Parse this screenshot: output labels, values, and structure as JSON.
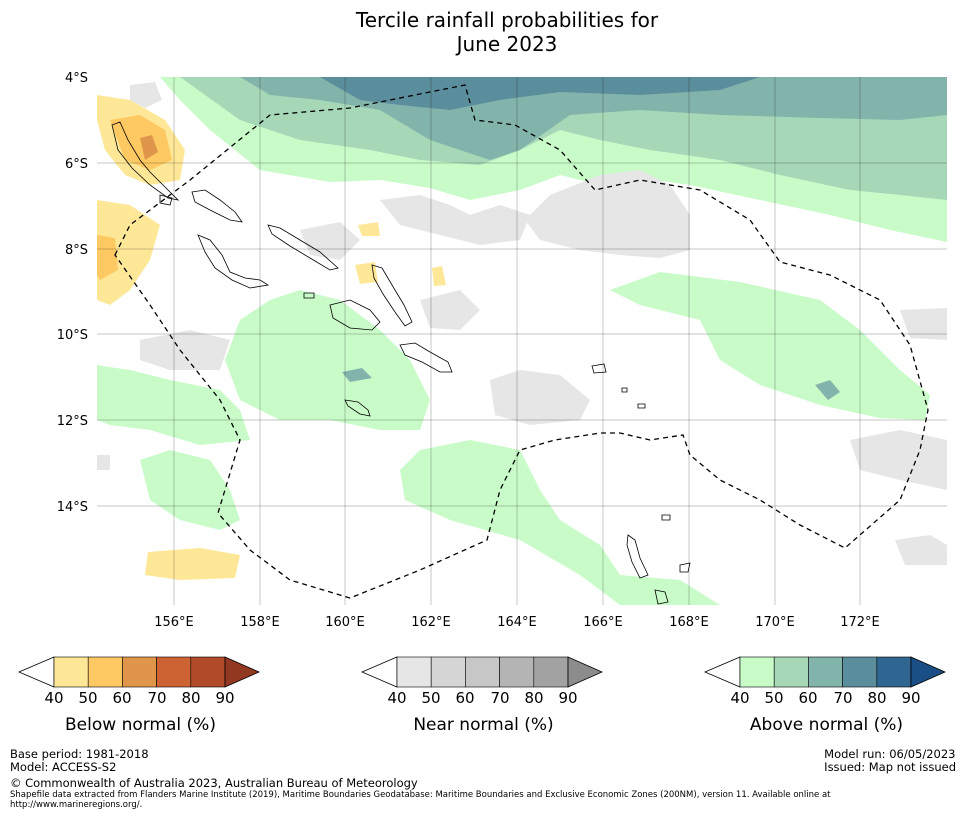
{
  "title_line1": "Tercile rainfall probabilities for",
  "title_line2": "June 2023",
  "map": {
    "lat_labels": [
      "4°S",
      "6°S",
      "8°S",
      "10°S",
      "12°S",
      "14°S"
    ],
    "lon_labels": [
      "156°E",
      "158°E",
      "160°E",
      "162°E",
      "164°E",
      "166°E",
      "168°E",
      "170°E",
      "172°E"
    ]
  },
  "legends": {
    "below": {
      "caption": "Below normal (%)",
      "ticks": [
        "40",
        "50",
        "60",
        "70",
        "80",
        "90"
      ],
      "colors": [
        "#ffffff",
        "#fee897",
        "#fec962",
        "#e0964a",
        "#cd6332",
        "#b04a28",
        "#923820"
      ]
    },
    "near": {
      "caption": "Near normal (%)",
      "ticks": [
        "40",
        "50",
        "60",
        "70",
        "80",
        "90"
      ],
      "colors": [
        "#ffffff",
        "#e6e6e6",
        "#d6d6d6",
        "#c7c7c7",
        "#b4b4b4",
        "#a2a2a2",
        "#8c8c8c"
      ]
    },
    "above": {
      "caption": "Above normal (%)",
      "ticks": [
        "40",
        "50",
        "60",
        "70",
        "80",
        "90"
      ],
      "colors": [
        "#ffffff",
        "#c9fbc9",
        "#a6d8b8",
        "#82b4ab",
        "#5b8e9c",
        "#2f6591",
        "#1a4f85"
      ]
    }
  },
  "footer": {
    "base_period": "Base period: 1981-2018",
    "model": "Model: ACCESS-S2",
    "model_run": "Model run: 06/05/2023",
    "issued": "Issued: Map not issued",
    "copyright": "© Commonwealth of Australia 2023, Australian Bureau of Meteorology",
    "shapefile_line1": "Shapefile data extracted from Flanders Marine Institute (2019), Maritime Boundaries Geodatabase: Maritime Boundaries and Exclusive Economic Zones (200NM), version 11. Available online at",
    "shapefile_line2": "http://www.marineregions.org/."
  }
}
